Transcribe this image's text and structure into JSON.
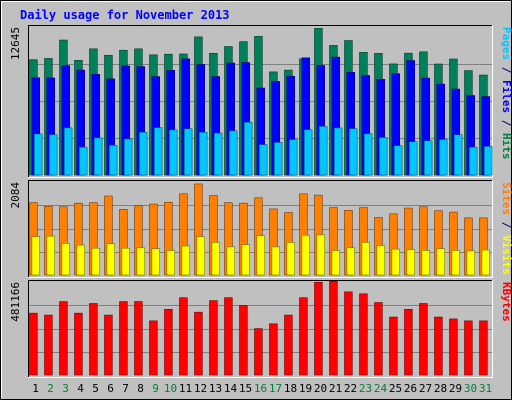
{
  "chart_data": {
    "title": "Daily usage for November 2013",
    "type": "bar",
    "categories": [
      "1",
      "2",
      "3",
      "4",
      "5",
      "6",
      "7",
      "8",
      "9",
      "10",
      "11",
      "12",
      "13",
      "14",
      "15",
      "16",
      "17",
      "18",
      "19",
      "20",
      "21",
      "22",
      "23",
      "24",
      "25",
      "26",
      "27",
      "28",
      "29",
      "30",
      "31"
    ],
    "weekend_days": [
      "2",
      "3",
      "9",
      "10",
      "16",
      "17",
      "23",
      "24",
      "30",
      "31"
    ],
    "panels": [
      {
        "id": "hits-files-pages",
        "max_label": "12645",
        "ymax": 12645,
        "right_labels": [
          {
            "text": "Pages",
            "color": "#00c8ff"
          },
          {
            "text": " / ",
            "color": "#000080"
          },
          {
            "text": "Files",
            "color": "#0000ff"
          },
          {
            "text": " / ",
            "color": "#000080"
          },
          {
            "text": "Hits",
            "color": "#008040"
          }
        ],
        "series": [
          {
            "name": "Hits",
            "color": "#00805a",
            "values": [
              9850,
              9960,
              11530,
              9800,
              10780,
              10230,
              10660,
              10780,
              10270,
              10320,
              10340,
              11800,
              10400,
              10980,
              11390,
              11850,
              8810,
              8960,
              9930,
              12530,
              11070,
              11490,
              10480,
              10390,
              9490,
              10410,
              10520,
              9480,
              9910,
              8920,
              8540
            ]
          },
          {
            "name": "Files",
            "color": "#0000ff",
            "values": [
              8300,
              8290,
              9340,
              8960,
              8600,
              8210,
              9310,
              9260,
              8400,
              8940,
              9920,
              9440,
              8410,
              9570,
              9610,
              7430,
              7990,
              8440,
              10010,
              9350,
              10070,
              8770,
              8500,
              8170,
              8660,
              9780,
              8280,
              7770,
              7340,
              6790,
              6700
            ]
          },
          {
            "name": "Pages",
            "color": "#00c8ff",
            "values": [
              3510,
              3450,
              4030,
              2380,
              3170,
              2540,
              3080,
              3650,
              4050,
              3850,
              3950,
              3650,
              3580,
              3780,
              4500,
              2600,
              2780,
              3030,
              3870,
              4150,
              4020,
              3960,
              3520,
              3200,
              2510,
              2840,
              2930,
              3030,
              3440,
              2380,
              2440
            ]
          }
        ]
      },
      {
        "id": "sites-visits",
        "max_label": "2084",
        "ymax": 2084,
        "right_labels": [
          {
            "text": "Sites",
            "color": "#ff8000"
          },
          {
            "text": " / ",
            "color": "#000080"
          },
          {
            "text": "Visits",
            "color": "#ffff00"
          }
        ],
        "series": [
          {
            "name": "Sites",
            "color": "#ff8000",
            "values": [
              1620,
              1540,
              1530,
              1610,
              1620,
              1770,
              1470,
              1550,
              1590,
              1630,
              1820,
              2040,
              1780,
              1620,
              1610,
              1730,
              1480,
              1400,
              1820,
              1790,
              1510,
              1450,
              1510,
              1290,
              1370,
              1500,
              1530,
              1440,
              1410,
              1280,
              1280
            ]
          },
          {
            "name": "Visits",
            "color": "#ffff00",
            "values": [
              860,
              870,
              710,
              670,
              600,
              700,
              600,
              610,
              590,
              550,
              650,
              860,
              730,
              630,
              680,
              880,
              630,
              730,
              890,
              900,
              550,
              610,
              730,
              660,
              580,
              570,
              550,
              590,
              550,
              540,
              560
            ]
          }
        ]
      },
      {
        "id": "kbytes",
        "max_label": "481166",
        "ymax": 481166,
        "right_labels": [
          {
            "text": "KBytes",
            "color": "#ff0000"
          }
        ],
        "series": [
          {
            "name": "KBytes",
            "color": "#ff0000",
            "values": [
              320000,
              310000,
              380000,
              320000,
              370000,
              310000,
              380000,
              380000,
              280000,
              340000,
              400000,
              325000,
              385000,
              400000,
              360000,
              240000,
              265000,
              310000,
              400000,
              480000,
              485000,
              430000,
              420000,
              375000,
              300000,
              340000,
              370000,
              300000,
              290000,
              280000,
              280000
            ]
          }
        ]
      }
    ]
  }
}
